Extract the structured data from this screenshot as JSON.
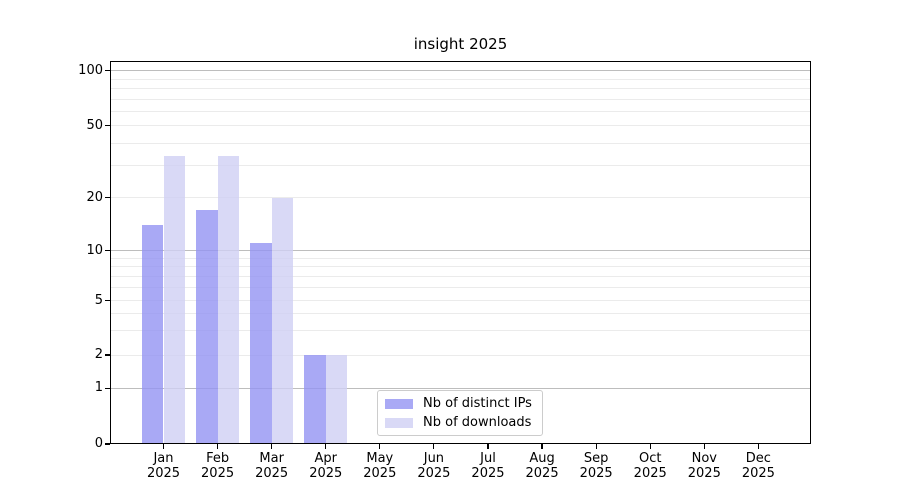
{
  "chart_data": {
    "type": "bar",
    "title": "insight 2025",
    "months": [
      "Jan",
      "Feb",
      "Mar",
      "Apr",
      "May",
      "Jun",
      "Jul",
      "Aug",
      "Sep",
      "Oct",
      "Nov",
      "Dec"
    ],
    "year_label": "2025",
    "series": [
      {
        "name": "Nb of distinct IPs",
        "color": "#a9a9f5",
        "values": [
          14,
          17,
          11,
          2,
          0,
          0,
          0,
          0,
          0,
          0,
          0,
          0
        ]
      },
      {
        "name": "Nb of downloads",
        "color": "#d9d9f6",
        "values": [
          34,
          34,
          20,
          2,
          0,
          0,
          0,
          0,
          0,
          0,
          0,
          0
        ]
      }
    ],
    "yscale": "symlog",
    "ylim": [
      0,
      115
    ],
    "y_tick_values": [
      0,
      1,
      2,
      5,
      10,
      20,
      50,
      100
    ],
    "y_major_gridlines": [
      1,
      10,
      100
    ],
    "y_minor_gridlines": [
      2,
      3,
      4,
      5,
      6,
      7,
      8,
      9,
      20,
      30,
      40,
      50,
      60,
      70,
      80,
      90
    ],
    "grid": true,
    "legend": {
      "position": "lower center",
      "entries": [
        "Nb of distinct IPs",
        "Nb of downloads"
      ]
    }
  },
  "colors": {
    "background": "#ffffff",
    "bar_ips": "#a9a9f5",
    "bar_downloads": "#d9d9f6",
    "grid_major": "#bdbdbd",
    "grid_minor": "#ebebeb",
    "axis_spine": "#000000",
    "text": "#000000",
    "legend_border": "#cccccc"
  }
}
